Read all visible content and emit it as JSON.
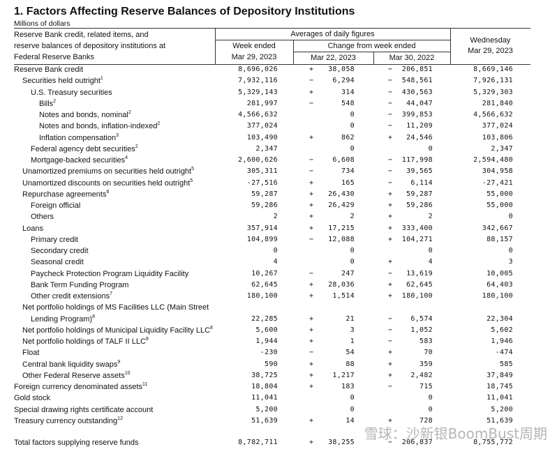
{
  "title": "1. Factors Affecting Reserve Balances of Depository Institutions",
  "subtitle": "Millions of dollars",
  "header": {
    "stub": [
      "Reserve Bank credit, related items, and",
      "reserve balances of depository institutions at",
      "Federal Reserve Banks"
    ],
    "averages": "Averages of daily figures",
    "week_ended": "Week ended",
    "week_date": "Mar 29, 2023",
    "change": "Change from week ended",
    "change_1": "Mar 22, 2023",
    "change_2": "Mar 30, 2022",
    "wednesday": "Wednesday",
    "wednesday_date": "Mar 29, 2023"
  },
  "rows": [
    {
      "label": "Reserve Bank credit",
      "week": "8,696,026",
      "s1": "+",
      "c1": "38,058",
      "s2": "−",
      "c2": "206,851",
      "wed": "8,669,146"
    },
    {
      "label": "Securities held outright",
      "note": "1",
      "week": "7,932,116",
      "s1": "−",
      "c1": "6,294",
      "s2": "−",
      "c2": "548,561",
      "wed": "7,926,131"
    },
    {
      "label": "U.S. Treasury securities",
      "week": "5,329,143",
      "s1": "+",
      "c1": "314",
      "s2": "−",
      "c2": "430,563",
      "wed": "5,329,303"
    },
    {
      "label": "Bills",
      "note": "2",
      "week": "281,997",
      "s1": "−",
      "c1": "548",
      "s2": "−",
      "c2": "44,047",
      "wed": "281,840"
    },
    {
      "label": "Notes and bonds, nominal",
      "note": "2",
      "week": "4,566,632",
      "c1": "0",
      "s2": "−",
      "c2": "399,853",
      "wed": "4,566,632"
    },
    {
      "label": "Notes and bonds, inflation-indexed",
      "note": "2",
      "week": "377,024",
      "c1": "0",
      "s2": "−",
      "c2": "11,209",
      "wed": "377,024"
    },
    {
      "label": "Inflation compensation",
      "note": "3",
      "week": "103,490",
      "s1": "+",
      "c1": "862",
      "s2": "+",
      "c2": "24,546",
      "wed": "103,806"
    },
    {
      "label": "Federal agency debt securities",
      "note": "2",
      "week": "2,347",
      "c1": "0",
      "c2": "0",
      "wed": "2,347"
    },
    {
      "label": "Mortgage-backed securities",
      "note": "4",
      "week": "2,600,626",
      "s1": "−",
      "c1": "6,608",
      "s2": "−",
      "c2": "117,998",
      "wed": "2,594,480"
    },
    {
      "label": "Unamortized premiums on securities held outright",
      "note": "5",
      "week": "305,311",
      "s1": "−",
      "c1": "734",
      "s2": "−",
      "c2": "39,565",
      "wed": "304,958"
    },
    {
      "label": "Unamortized discounts on securities held outright",
      "note": "5",
      "week": "-27,516",
      "s1": "+",
      "c1": "165",
      "s2": "−",
      "c2": "6,114",
      "wed": "-27,421"
    },
    {
      "label": "Repurchase agreements",
      "note": "6",
      "week": "59,287",
      "s1": "+",
      "c1": "26,430",
      "s2": "+",
      "c2": "59,287",
      "wed": "55,000"
    },
    {
      "label": "Foreign official",
      "week": "59,286",
      "s1": "+",
      "c1": "26,429",
      "s2": "+",
      "c2": "59,286",
      "wed": "55,000"
    },
    {
      "label": "Others",
      "week": "2",
      "s1": "+",
      "c1": "2",
      "s2": "+",
      "c2": "2",
      "wed": "0"
    },
    {
      "label": "Loans",
      "week": "357,914",
      "s1": "+",
      "c1": "17,215",
      "s2": "+",
      "c2": "333,400",
      "wed": "342,667"
    },
    {
      "label": "Primary credit",
      "week": "104,899",
      "s1": "−",
      "c1": "12,088",
      "s2": "+",
      "c2": "104,271",
      "wed": "88,157"
    },
    {
      "label": "Secondary credit",
      "week": "0",
      "c1": "0",
      "c2": "0",
      "wed": "0"
    },
    {
      "label": "Seasonal credit",
      "week": "4",
      "c1": "0",
      "s2": "+",
      "c2": "4",
      "wed": "3"
    },
    {
      "label": "Paycheck Protection Program Liquidity Facility",
      "week": "10,267",
      "s1": "−",
      "c1": "247",
      "s2": "−",
      "c2": "13,619",
      "wed": "10,005"
    },
    {
      "label": "Bank Term Funding Program",
      "week": "62,645",
      "s1": "+",
      "c1": "28,036",
      "s2": "+",
      "c2": "62,645",
      "wed": "64,403"
    },
    {
      "label": "Other credit extensions",
      "note": "7",
      "week": "180,100",
      "s1": "+",
      "c1": "1,514",
      "s2": "+",
      "c2": "180,100",
      "wed": "180,100"
    },
    {
      "label": "Net portfolio holdings of MS Facilities LLC (Main Street Lending Program)",
      "note": "8",
      "week": "22,285",
      "s1": "+",
      "c1": "21",
      "s2": "−",
      "c2": "6,574",
      "wed": "22,304"
    },
    {
      "label": "Net portfolio holdings of Municipal Liquidity Facility LLC",
      "note": "8",
      "week": "5,600",
      "s1": "+",
      "c1": "3",
      "s2": "−",
      "c2": "1,052",
      "wed": "5,602"
    },
    {
      "label": "Net portfolio holdings of TALF II LLC",
      "note": "8",
      "week": "1,944",
      "s1": "+",
      "c1": "1",
      "s2": "−",
      "c2": "583",
      "wed": "1,946"
    },
    {
      "label": "Float",
      "week": "-230",
      "s1": "−",
      "c1": "54",
      "s2": "+",
      "c2": "70",
      "wed": "-474"
    },
    {
      "label": "Central bank liquidity swaps",
      "note": "9",
      "week": "590",
      "s1": "+",
      "c1": "88",
      "s2": "+",
      "c2": "359",
      "wed": "585"
    },
    {
      "label": "Other Federal Reserve assets",
      "note": "10",
      "week": "38,725",
      "s1": "+",
      "c1": "1,217",
      "s2": "+",
      "c2": "2,482",
      "wed": "37,849"
    },
    {
      "label": "Foreign currency denominated assets",
      "note": "11",
      "week": "18,804",
      "s1": "+",
      "c1": "183",
      "s2": "−",
      "c2": "715",
      "wed": "18,745"
    },
    {
      "label": "Gold stock",
      "week": "11,041",
      "c1": "0",
      "c2": "0",
      "wed": "11,041"
    },
    {
      "label": "Special drawing rights certificate account",
      "week": "5,200",
      "c1": "0",
      "c2": "0",
      "wed": "5,200"
    },
    {
      "label": "Treasury currency outstanding",
      "note": "12",
      "week": "51,639",
      "s1": "+",
      "c1": "14",
      "s2": "+",
      "c2": "728",
      "wed": "51,639"
    },
    {
      "label": "Total factors supplying reserve funds",
      "week": "8,782,711",
      "s1": "+",
      "c1": "38,255",
      "s2": "−",
      "c2": "206,837",
      "wed": "8,755,772"
    }
  ],
  "watermark": "雪球：沙新银BoomBust周期"
}
